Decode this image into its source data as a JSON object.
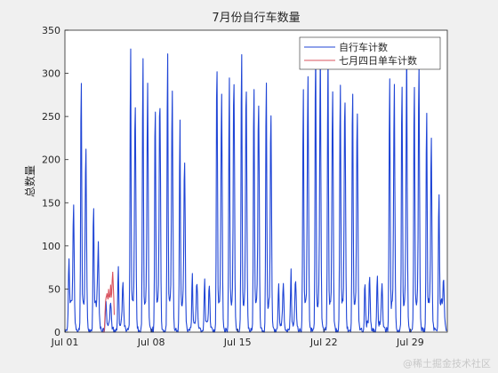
{
  "watermark": "@稀土掘金技术社区",
  "chart_data": {
    "type": "line",
    "title": "7月份自行车数量",
    "xlabel": "",
    "ylabel": "总数量",
    "x_unit": "days since Jul 01 00:00",
    "xlim": [
      0,
      31
    ],
    "ylim": [
      0,
      350
    ],
    "yticks": [
      0,
      50,
      100,
      150,
      200,
      250,
      300,
      350
    ],
    "xticks": [
      {
        "x": 0,
        "label": "Jul 01"
      },
      {
        "x": 7,
        "label": "Jul 08"
      },
      {
        "x": 14,
        "label": "Jul 15"
      },
      {
        "x": 21,
        "label": "Jul 22"
      },
      {
        "x": 28,
        "label": "Jul 29"
      }
    ],
    "grid": false,
    "legend_location": "top-right",
    "series": [
      {
        "name": "自行车计数",
        "color": "#1f45d6",
        "daily_peaks": [
          {
            "day": "Jul 01",
            "am": 70,
            "pm": 130
          },
          {
            "day": "Jul 02",
            "am": 275,
            "pm": 200
          },
          {
            "day": "Jul 03",
            "am": 130,
            "pm": 80
          },
          {
            "day": "Jul 04",
            "am": 35,
            "pm": 30
          },
          {
            "day": "Jul 05",
            "am": 70,
            "pm": 60
          },
          {
            "day": "Jul 06",
            "am": 297,
            "pm": 255
          },
          {
            "day": "Jul 07",
            "am": 297,
            "pm": 280
          },
          {
            "day": "Jul 08",
            "am": 280,
            "pm": 270
          },
          {
            "day": "Jul 09",
            "am": 297,
            "pm": 275
          },
          {
            "day": "Jul 10",
            "am": 220,
            "pm": 200
          },
          {
            "day": "Jul 11",
            "am": 60,
            "pm": 55
          },
          {
            "day": "Jul 12",
            "am": 60,
            "pm": 55
          },
          {
            "day": "Jul 13",
            "am": 320,
            "pm": 280
          },
          {
            "day": "Jul 14",
            "am": 300,
            "pm": 280
          },
          {
            "day": "Jul 15",
            "am": 310,
            "pm": 290
          },
          {
            "day": "Jul 16",
            "am": 300,
            "pm": 270
          },
          {
            "day": "Jul 17",
            "am": 270,
            "pm": 220
          },
          {
            "day": "Jul 18",
            "am": 55,
            "pm": 50
          },
          {
            "day": "Jul 19",
            "am": 65,
            "pm": 55
          },
          {
            "day": "Jul 20",
            "am": 293,
            "pm": 275
          },
          {
            "day": "Jul 21",
            "am": 308,
            "pm": 290
          },
          {
            "day": "Jul 22",
            "am": 305,
            "pm": 285
          },
          {
            "day": "Jul 23",
            "am": 300,
            "pm": 270
          },
          {
            "day": "Jul 24",
            "am": 270,
            "pm": 230
          },
          {
            "day": "Jul 25",
            "am": 60,
            "pm": 55
          },
          {
            "day": "Jul 26",
            "am": 65,
            "pm": 50
          },
          {
            "day": "Jul 27",
            "am": 295,
            "pm": 280
          },
          {
            "day": "Jul 28",
            "am": 300,
            "pm": 290
          },
          {
            "day": "Jul 29",
            "am": 295,
            "pm": 285
          },
          {
            "day": "Jul 30",
            "am": 265,
            "pm": 200
          },
          {
            "day": "Jul 31",
            "am": 145,
            "pm": 40
          }
        ]
      },
      {
        "name": "七月四日单车计数",
        "color": "#d9535f",
        "x_range": [
          3,
          4
        ],
        "values": [
          0,
          0,
          0,
          0,
          0,
          5,
          20,
          35,
          40,
          42,
          45,
          40,
          38,
          50,
          42,
          40,
          45,
          55,
          40,
          45,
          60,
          70,
          55,
          40,
          20
        ]
      }
    ]
  }
}
